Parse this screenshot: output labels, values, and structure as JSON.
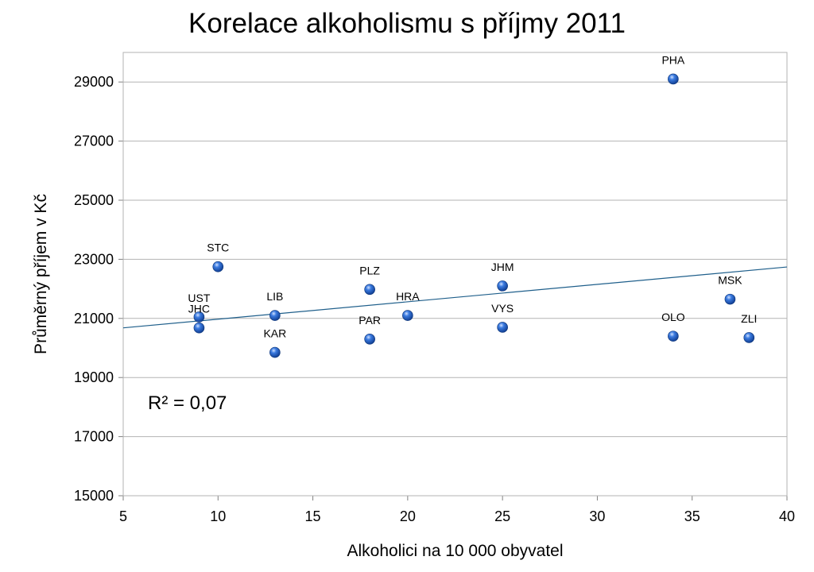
{
  "chart_data": {
    "type": "scatter",
    "title": "Korelace alkoholismu s příjmy 2011",
    "xlabel": "Alkoholici na 10 000 obyvatel",
    "ylabel": "Průměrný příjem v Kč",
    "xlim": [
      5,
      40
    ],
    "ylim": [
      15000,
      30000
    ],
    "xticks": [
      5,
      10,
      15,
      20,
      25,
      30,
      35,
      40
    ],
    "yticks": [
      15000,
      17000,
      19000,
      21000,
      23000,
      25000,
      27000,
      29000
    ],
    "grid": "horizontal",
    "points": [
      {
        "label": "PHA",
        "x": 34,
        "y": 29100
      },
      {
        "label": "STC",
        "x": 10,
        "y": 22750
      },
      {
        "label": "UST",
        "x": 9,
        "y": 21050
      },
      {
        "label": "JHC",
        "x": 9,
        "y": 20680
      },
      {
        "label": "LIB",
        "x": 13,
        "y": 21100
      },
      {
        "label": "KAR",
        "x": 13,
        "y": 19850
      },
      {
        "label": "PLZ",
        "x": 18,
        "y": 21980
      },
      {
        "label": "PAR",
        "x": 18,
        "y": 20300
      },
      {
        "label": "HRA",
        "x": 20,
        "y": 21100
      },
      {
        "label": "JHM",
        "x": 25,
        "y": 22100
      },
      {
        "label": "VYS",
        "x": 25,
        "y": 20700
      },
      {
        "label": "OLO",
        "x": 34,
        "y": 20400
      },
      {
        "label": "MSK",
        "x": 37,
        "y": 21650
      },
      {
        "label": "ZLI",
        "x": 38,
        "y": 20350
      }
    ],
    "trendline": {
      "x": [
        5,
        40
      ],
      "y": [
        20680,
        22740
      ]
    },
    "annotation": "R² = 0,07",
    "colors": {
      "marker": "#2a6ad4",
      "trendline": "#1f5f8b",
      "grid": "#b3b3b3"
    }
  }
}
